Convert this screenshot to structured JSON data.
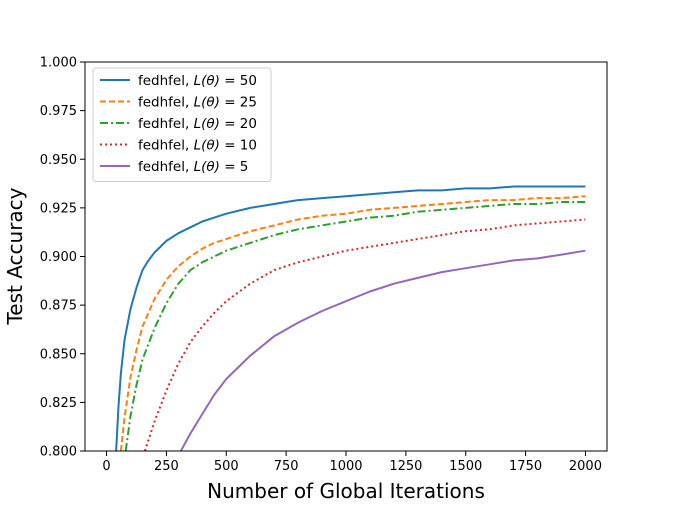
{
  "chart_data": {
    "type": "line",
    "title": "",
    "xlabel": "Number of Global Iterations",
    "ylabel": "Test Accuracy",
    "xlim": [
      -90,
      2090
    ],
    "ylim": [
      0.8,
      1.0
    ],
    "xticks": [
      0,
      250,
      500,
      750,
      1000,
      1250,
      1500,
      1750,
      2000
    ],
    "yticks": [
      0.8,
      0.825,
      0.85,
      0.875,
      0.9,
      0.925,
      0.95,
      0.975,
      1.0
    ],
    "xtick_labels": [
      "0",
      "250",
      "500",
      "750",
      "1000",
      "1250",
      "1500",
      "1750",
      "2000"
    ],
    "ytick_labels": [
      "0.800",
      "0.825",
      "0.850",
      "0.875",
      "0.900",
      "0.925",
      "0.950",
      "0.975",
      "1.000"
    ],
    "grid": false,
    "legend_position": "top-left",
    "series": [
      {
        "name": "fedhfel, L(θ) = 50",
        "legend_prefix": "fedhfel, ",
        "legend_var": "L(θ)",
        "legend_suffix": " = 50",
        "color": "#1f77b4",
        "dash": "solid",
        "x": [
          40,
          50,
          60,
          75,
          100,
          125,
          150,
          175,
          200,
          250,
          300,
          350,
          400,
          450,
          500,
          600,
          700,
          750,
          800,
          900,
          1000,
          1100,
          1200,
          1300,
          1400,
          1500,
          1600,
          1700,
          1800,
          1900,
          2000
        ],
        "y": [
          0.8,
          0.823,
          0.84,
          0.857,
          0.873,
          0.884,
          0.893,
          0.898,
          0.902,
          0.908,
          0.912,
          0.915,
          0.918,
          0.92,
          0.922,
          0.925,
          0.927,
          0.928,
          0.929,
          0.93,
          0.931,
          0.932,
          0.933,
          0.934,
          0.934,
          0.935,
          0.935,
          0.936,
          0.936,
          0.936,
          0.936
        ]
      },
      {
        "name": "fedhfel, L(θ) = 25",
        "legend_prefix": "fedhfel, ",
        "legend_var": "L(θ)",
        "legend_suffix": " = 25",
        "color": "#ff7f0e",
        "dash": "dashed",
        "x": [
          60,
          75,
          100,
          125,
          150,
          200,
          250,
          300,
          350,
          400,
          450,
          500,
          600,
          700,
          800,
          900,
          1000,
          1100,
          1200,
          1300,
          1400,
          1500,
          1600,
          1700,
          1800,
          1900,
          2000
        ],
        "y": [
          0.8,
          0.817,
          0.838,
          0.852,
          0.864,
          0.878,
          0.888,
          0.895,
          0.9,
          0.904,
          0.907,
          0.909,
          0.913,
          0.916,
          0.919,
          0.921,
          0.922,
          0.924,
          0.925,
          0.926,
          0.927,
          0.928,
          0.929,
          0.929,
          0.93,
          0.93,
          0.931
        ]
      },
      {
        "name": "fedhfel, L(θ) = 20",
        "legend_prefix": "fedhfel, ",
        "legend_var": "L(θ)",
        "legend_suffix": " = 20",
        "color": "#2ca02c",
        "dash": "dashdot",
        "x": [
          80,
          100,
          125,
          150,
          200,
          250,
          300,
          350,
          400,
          450,
          500,
          600,
          700,
          800,
          900,
          1000,
          1100,
          1200,
          1300,
          1400,
          1500,
          1600,
          1700,
          1800,
          1900,
          2000
        ],
        "y": [
          0.8,
          0.818,
          0.834,
          0.847,
          0.863,
          0.876,
          0.886,
          0.893,
          0.897,
          0.9,
          0.903,
          0.907,
          0.911,
          0.914,
          0.916,
          0.918,
          0.92,
          0.921,
          0.923,
          0.924,
          0.925,
          0.926,
          0.927,
          0.927,
          0.928,
          0.928
        ]
      },
      {
        "name": "fedhfel, L(θ) = 10",
        "legend_prefix": "fedhfel, ",
        "legend_var": "L(θ)",
        "legend_suffix": " = 10",
        "color": "#d62728",
        "dash": "dotted",
        "x": [
          160,
          200,
          250,
          300,
          350,
          400,
          450,
          500,
          600,
          700,
          800,
          900,
          1000,
          1100,
          1200,
          1300,
          1400,
          1500,
          1600,
          1700,
          1800,
          1900,
          2000
        ],
        "y": [
          0.8,
          0.815,
          0.831,
          0.845,
          0.856,
          0.864,
          0.871,
          0.877,
          0.886,
          0.893,
          0.897,
          0.9,
          0.903,
          0.905,
          0.907,
          0.909,
          0.911,
          0.913,
          0.914,
          0.916,
          0.917,
          0.918,
          0.919
        ]
      },
      {
        "name": "fedhfel, L(θ) = 5",
        "legend_prefix": "fedhfel, ",
        "legend_var": "L(θ)",
        "legend_suffix": " = 5",
        "color": "#9467bd",
        "dash": "solid",
        "x": [
          310,
          350,
          400,
          450,
          500,
          550,
          600,
          700,
          800,
          900,
          1000,
          1100,
          1200,
          1300,
          1400,
          1500,
          1600,
          1700,
          1800,
          1900,
          2000
        ],
        "y": [
          0.8,
          0.809,
          0.819,
          0.829,
          0.837,
          0.843,
          0.849,
          0.859,
          0.866,
          0.872,
          0.877,
          0.882,
          0.886,
          0.889,
          0.892,
          0.894,
          0.896,
          0.898,
          0.899,
          0.901,
          0.903
        ]
      }
    ]
  }
}
